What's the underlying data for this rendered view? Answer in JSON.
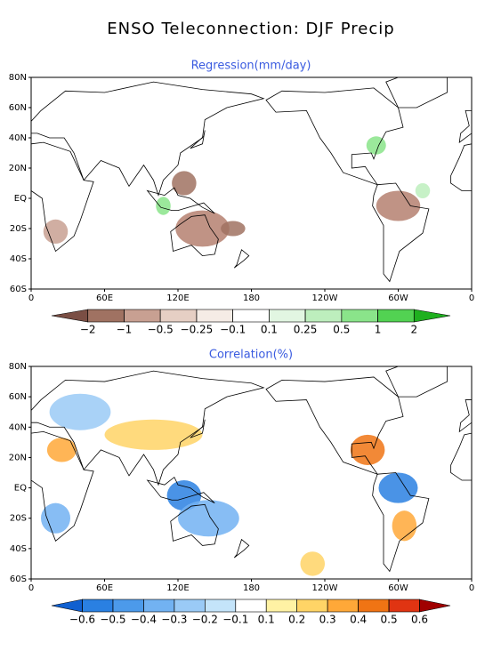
{
  "title": "ENSO Teleconnection: DJF Precip",
  "panels": [
    {
      "title": "Regression(mm/day)",
      "lat_labels": [
        "80N",
        "60N",
        "40N",
        "20N",
        "EQ",
        "20S",
        "40S",
        "60S"
      ],
      "lon_labels": [
        "0",
        "60E",
        "120E",
        "180",
        "120W",
        "60W",
        "0"
      ],
      "colorbar": {
        "ticks": [
          {
            "value": -2,
            "label": "−2"
          },
          {
            "value": -1,
            "label": "−1"
          },
          {
            "value": -0.5,
            "label": "−0.5"
          },
          {
            "value": -0.25,
            "label": "−0.25"
          },
          {
            "value": -0.1,
            "label": "−0.1"
          },
          0.1,
          0.25,
          0.5,
          1,
          2
        ],
        "colors": [
          "#7a4e44",
          "#a07262",
          "#c8a092",
          "#e6cfc4",
          "#f5ece6",
          "#ffffff",
          "#e2f6e2",
          "#bdeebd",
          "#8ae48a",
          "#52d252",
          "#1fb01f"
        ]
      }
    },
    {
      "title": "Correlation(%)",
      "lat_labels": [
        "80N",
        "60N",
        "40N",
        "20N",
        "EQ",
        "20S",
        "40S",
        "60S"
      ],
      "lon_labels": [
        "0",
        "60E",
        "120E",
        "180",
        "120W",
        "60W",
        "0"
      ],
      "colorbar": {
        "ticks": [
          {
            "value": -0.6,
            "label": "−0.6"
          },
          {
            "value": -0.5,
            "label": "−0.5"
          },
          {
            "value": -0.4,
            "label": "−0.4"
          },
          {
            "value": -0.3,
            "label": "−0.3"
          },
          {
            "value": -0.2,
            "label": "−0.2"
          },
          {
            "value": -0.1,
            "label": "−0.1"
          },
          0.1,
          0.2,
          0.3,
          0.4,
          0.5,
          0.6
        ],
        "colors": [
          "#1060d0",
          "#2a80e2",
          "#4c9aea",
          "#72b2f2",
          "#9acaf6",
          "#c4e4fa",
          "#ffffff",
          "#fff2a4",
          "#ffd466",
          "#ffa838",
          "#f07414",
          "#e03412",
          "#a00000"
        ]
      }
    }
  ]
}
